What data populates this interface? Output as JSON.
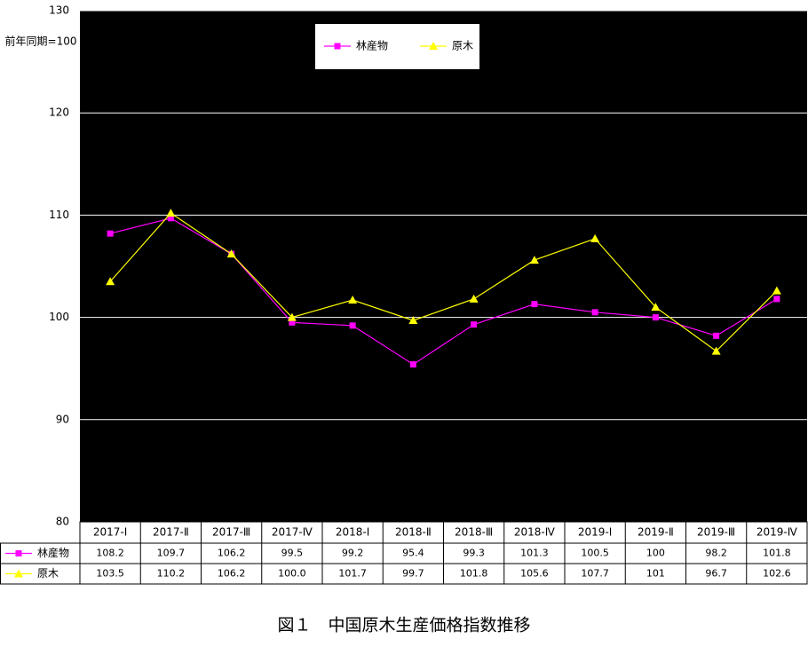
{
  "chart_data": {
    "type": "line",
    "title": "図１　中国原木生産価格指数推移",
    "y_label": "前年同期=100",
    "categories": [
      "2017-Ⅰ",
      "2017-Ⅱ",
      "2017-Ⅲ",
      "2017-Ⅳ",
      "2018-Ⅰ",
      "2018-Ⅱ",
      "2018-Ⅲ",
      "2018-Ⅳ",
      "2019-Ⅰ",
      "2019-Ⅱ",
      "2019-Ⅲ",
      "2019-Ⅳ"
    ],
    "series": [
      {
        "name": "林産物",
        "color": "#ff00ff",
        "marker": "square",
        "values": [
          108.2,
          109.7,
          106.2,
          99.5,
          99.2,
          95.4,
          99.3,
          101.3,
          100.5,
          100,
          98.2,
          101.8
        ]
      },
      {
        "name": "原木",
        "color": "#ffff00",
        "marker": "triangle",
        "values": [
          103.5,
          110.2,
          106.2,
          100.0,
          101.7,
          99.7,
          101.8,
          105.6,
          107.7,
          101,
          96.7,
          102.6
        ],
        "value_labels": [
          "103.5",
          "110.2",
          "106.2",
          "100.0",
          "101.7",
          "99.7",
          "101.8",
          "105.6",
          "107.7",
          "101",
          "96.7",
          "102.6"
        ]
      }
    ],
    "ylim": [
      80,
      130
    ],
    "yticks": [
      80,
      90,
      100,
      110,
      120,
      130
    ],
    "grid": true,
    "plot_background": "#000000",
    "grid_color": "#ffffff"
  }
}
